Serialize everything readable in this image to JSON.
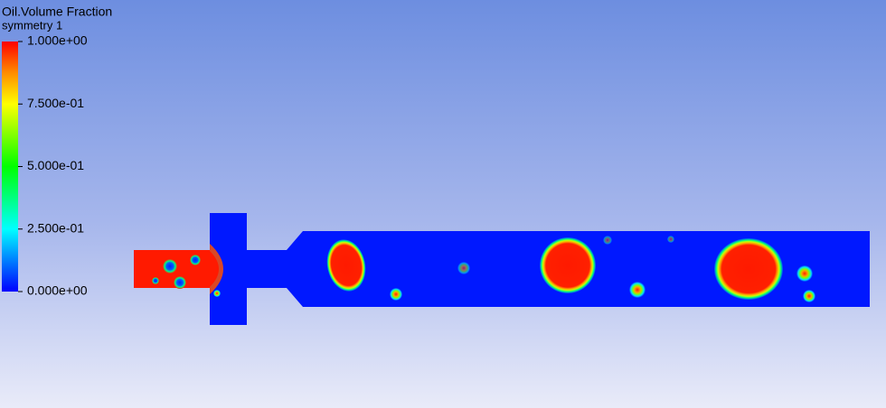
{
  "legend": {
    "title": "Oil.Volume Fraction",
    "subtitle": "symmetry 1",
    "ticks": [
      {
        "value": 1,
        "label": "1.000e+00"
      },
      {
        "value": 0.75,
        "label": "7.500e-01"
      },
      {
        "value": 0.5,
        "label": "5.000e-01"
      },
      {
        "value": 0.25,
        "label": "2.500e-01"
      },
      {
        "value": 0,
        "label": "0.000e+00"
      }
    ],
    "range": [
      0,
      1
    ]
  }
}
